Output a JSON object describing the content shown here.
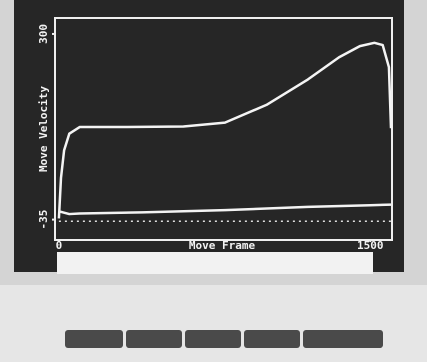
{
  "chart_data": {
    "type": "line",
    "xlabel": "Move Frame",
    "ylabel": "Move Velocity",
    "xlim": [
      -14,
      1600
    ],
    "ylim": [
      -70,
      327
    ],
    "xticks": [
      0,
      1500
    ],
    "yticks": [
      -35,
      300
    ],
    "series": [
      {
        "color": "#f4f4f4",
        "style": "solid",
        "x": [
          0,
          10,
          25,
          50,
          100,
          300,
          600,
          800,
          1000,
          1200,
          1350,
          1450,
          1520,
          1560,
          1590,
          1600
        ],
        "values": [
          -33,
          40,
          90,
          120,
          132,
          132,
          133,
          140,
          172,
          218,
          258,
          278,
          284,
          280,
          240,
          130
        ]
      },
      {
        "color": "#f4f4f4",
        "style": "solid",
        "x": [
          0,
          50,
          100,
          400,
          800,
          1200,
          1500,
          1600
        ],
        "values": [
          -20,
          -25,
          -24,
          -22,
          -18,
          -12,
          -9,
          -8
        ]
      },
      {
        "color": "#e0e0e0",
        "style": "dotted",
        "x": [
          0,
          1600
        ],
        "values": [
          -38,
          -38
        ]
      }
    ]
  }
}
